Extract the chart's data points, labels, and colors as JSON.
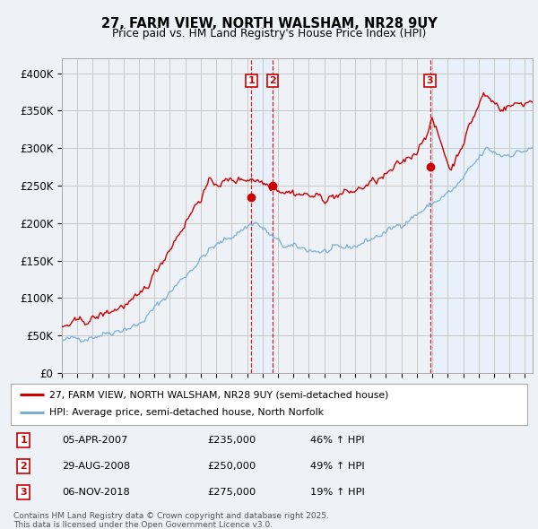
{
  "title": "27, FARM VIEW, NORTH WALSHAM, NR28 9UY",
  "subtitle": "Price paid vs. HM Land Registry's House Price Index (HPI)",
  "ylim": [
    0,
    420000
  ],
  "yticks": [
    0,
    50000,
    100000,
    150000,
    200000,
    250000,
    300000,
    350000,
    400000
  ],
  "ytick_labels": [
    "£0",
    "£50K",
    "£100K",
    "£150K",
    "£200K",
    "£250K",
    "£300K",
    "£350K",
    "£400K"
  ],
  "red_line_color": "#cc0000",
  "blue_line_color": "#7aadd4",
  "shade_color": "#ddeeff",
  "bg_color": "#f0f4f8",
  "plot_bg_color": "#f0f4f8",
  "grid_color": "#cccccc",
  "sale_years": [
    2007.27,
    2008.66,
    2018.85
  ],
  "sale_prices": [
    235000,
    250000,
    275000
  ],
  "sale_labels": [
    "1",
    "2",
    "3"
  ],
  "legend_entries": [
    {
      "color": "#cc0000",
      "label": "27, FARM VIEW, NORTH WALSHAM, NR28 9UY (semi-detached house)"
    },
    {
      "color": "#7aadd4",
      "label": "HPI: Average price, semi-detached house, North Norfolk"
    }
  ],
  "table_entries": [
    {
      "num": "1",
      "date": "05-APR-2007",
      "price": "£235,000",
      "hpi": "46% ↑ HPI"
    },
    {
      "num": "2",
      "date": "29-AUG-2008",
      "price": "£250,000",
      "hpi": "49% ↑ HPI"
    },
    {
      "num": "3",
      "date": "06-NOV-2018",
      "price": "£275,000",
      "hpi": "19% ↑ HPI"
    }
  ],
  "footnote": "Contains HM Land Registry data © Crown copyright and database right 2025.\nThis data is licensed under the Open Government Licence v3.0.",
  "x_start_year": 1995.5,
  "x_end_year": 2025.5
}
